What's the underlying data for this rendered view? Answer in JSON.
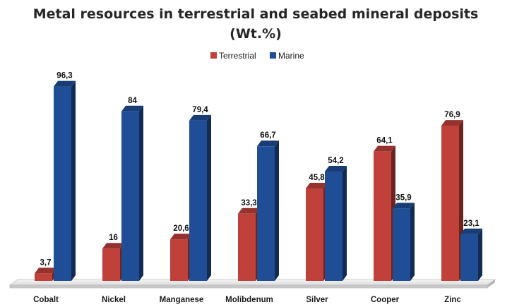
{
  "chart_data": {
    "type": "bar",
    "title_line1": "Metal resources in terrestrial and seabed mineral deposits",
    "title_line2": "(Wt.%)",
    "categories": [
      "Cobalt",
      "Nickel",
      "Manganese",
      "Molibdenum",
      "Silver",
      "Cooper",
      "Zinc"
    ],
    "series": [
      {
        "name": "Terrestrial",
        "color": "#c0403a",
        "values": [
          3.7,
          16,
          20.6,
          33.3,
          45.8,
          64.1,
          76.9
        ],
        "labels": [
          "3,7",
          "16",
          "20,6",
          "33,3",
          "45,8",
          "64,1",
          "76,9"
        ]
      },
      {
        "name": "Marine",
        "color": "#1f4e96",
        "values": [
          96.3,
          84,
          79.4,
          66.7,
          54.2,
          35.9,
          23.1
        ],
        "labels": [
          "96,3",
          "84",
          "79,4",
          "66,7",
          "54,2",
          "35,9",
          "23,1"
        ]
      }
    ],
    "xlabel": "",
    "ylabel": "",
    "ylim": [
      0,
      100
    ],
    "grid": false,
    "legend_position": "top-center"
  }
}
